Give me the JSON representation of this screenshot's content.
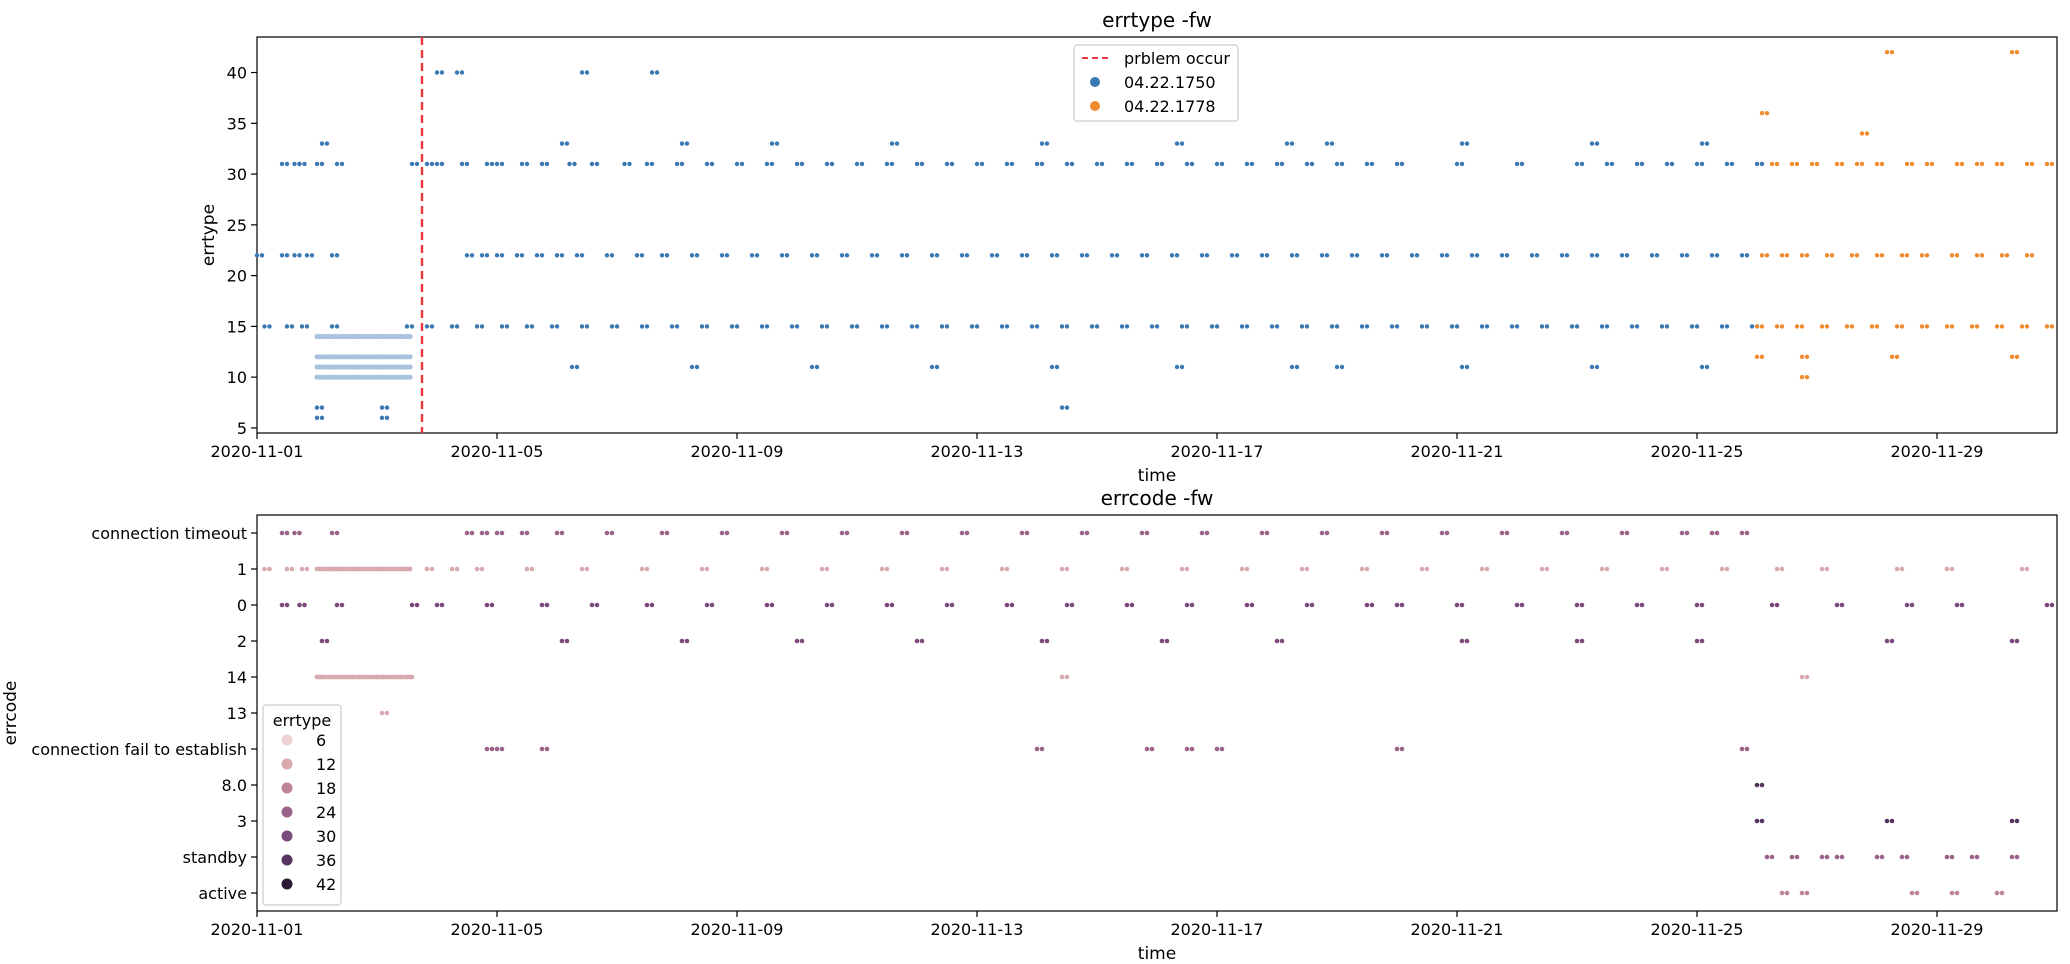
{
  "chart_data": [
    {
      "type": "scatter",
      "title": "errtype -fw",
      "xlabel": "time",
      "ylabel": "errtype",
      "xlim": [
        "2020-11-01",
        "2020-12-01"
      ],
      "ylim": [
        4.5,
        43.5
      ],
      "x_ticks": [
        "2020-11-01",
        "2020-11-05",
        "2020-11-09",
        "2020-11-13",
        "2020-11-17",
        "2020-11-21",
        "2020-11-25",
        "2020-11-29"
      ],
      "y_ticks": [
        5,
        10,
        15,
        20,
        25,
        30,
        35,
        40
      ],
      "legend_position": "upper center",
      "vline": {
        "x": "2020-11-03 18:00",
        "label": "prblem occur",
        "color": "#e8383a",
        "style": "dashed"
      },
      "series": [
        {
          "name": "04.22.1750",
          "color": "#3a78b4",
          "levels": [
            {
              "y": 31,
              "x": [
                "2020-11-01 10:00",
                "2020-11-01 15:00",
                "2020-11-01 17:00",
                "2020-11-02 00:00",
                "2020-11-02 08:00",
                "2020-11-03 14:00",
                "2020-11-03 20:00",
                "2020-11-04 00:00",
                "2020-11-04 10:00",
                "2020-11-04 20:00",
                "2020-11-05 00:00",
                "2020-11-05 10:00",
                "2020-11-05 18:00",
                "2020-11-06 05:00",
                "2020-11-06 14:00",
                "2020-11-07 03:00",
                "2020-11-07 12:00",
                "2020-11-08 00:00",
                "2020-11-08 12:00",
                "2020-11-09 00:00",
                "2020-11-09 12:00",
                "2020-11-10 00:00",
                "2020-11-10 12:00",
                "2020-11-11 00:00",
                "2020-11-11 12:00",
                "2020-11-12 00:00",
                "2020-11-12 12:00",
                "2020-11-13 00:00",
                "2020-11-13 12:00",
                "2020-11-14 00:00",
                "2020-11-14 12:00",
                "2020-11-15 00:00",
                "2020-11-15 12:00",
                "2020-11-16 00:00",
                "2020-11-16 12:00",
                "2020-11-17 00:00",
                "2020-11-17 12:00",
                "2020-11-18 00:00",
                "2020-11-18 12:00",
                "2020-11-19 00:00",
                "2020-11-19 12:00",
                "2020-11-20 00:00",
                "2020-11-21 00:00",
                "2020-11-22 00:00",
                "2020-11-23 00:00",
                "2020-11-23 12:00",
                "2020-11-24 00:00",
                "2020-11-24 12:00",
                "2020-11-25 00:00",
                "2020-11-25 12:00",
                "2020-11-26 00:00"
              ]
            },
            {
              "y": 22,
              "x": [
                "2020-11-01 00:00",
                "2020-11-01 10:00",
                "2020-11-01 15:00",
                "2020-11-01 20:00",
                "2020-11-02 06:00",
                "2020-11-04 12:00",
                "2020-11-04 18:00",
                "2020-11-05 00:00",
                "2020-11-05 08:00",
                "2020-11-05 16:00",
                "2020-11-06 00:00",
                "2020-11-06 08:00",
                "2020-11-06 20:00",
                "2020-11-07 08:00",
                "2020-11-07 18:00",
                "2020-11-08 06:00",
                "2020-11-08 18:00",
                "2020-11-09 06:00",
                "2020-11-09 18:00",
                "2020-11-10 06:00",
                "2020-11-10 18:00",
                "2020-11-11 06:00",
                "2020-11-11 18:00",
                "2020-11-12 06:00",
                "2020-11-12 18:00",
                "2020-11-13 06:00",
                "2020-11-13 18:00",
                "2020-11-14 06:00",
                "2020-11-14 18:00",
                "2020-11-15 06:00",
                "2020-11-15 18:00",
                "2020-11-16 06:00",
                "2020-11-16 18:00",
                "2020-11-17 06:00",
                "2020-11-17 18:00",
                "2020-11-18 06:00",
                "2020-11-18 18:00",
                "2020-11-19 06:00",
                "2020-11-19 18:00",
                "2020-11-20 06:00",
                "2020-11-20 18:00",
                "2020-11-21 06:00",
                "2020-11-21 18:00",
                "2020-11-22 06:00",
                "2020-11-22 18:00",
                "2020-11-23 06:00",
                "2020-11-23 18:00",
                "2020-11-24 06:00",
                "2020-11-24 18:00",
                "2020-11-25 06:00",
                "2020-11-25 18:00"
              ]
            },
            {
              "y": 15,
              "x": [
                "2020-11-01 03:00",
                "2020-11-01 12:00",
                "2020-11-01 18:00",
                "2020-11-02 06:00",
                "2020-11-03 12:00",
                "2020-11-03 20:00",
                "2020-11-04 06:00",
                "2020-11-04 16:00",
                "2020-11-05 02:00",
                "2020-11-05 12:00",
                "2020-11-05 22:00",
                "2020-11-06 10:00",
                "2020-11-06 22:00",
                "2020-11-07 10:00",
                "2020-11-07 22:00",
                "2020-11-08 10:00",
                "2020-11-08 22:00",
                "2020-11-09 10:00",
                "2020-11-09 22:00",
                "2020-11-10 10:00",
                "2020-11-10 22:00",
                "2020-11-11 10:00",
                "2020-11-11 22:00",
                "2020-11-12 10:00",
                "2020-11-12 22:00",
                "2020-11-13 10:00",
                "2020-11-13 22:00",
                "2020-11-14 10:00",
                "2020-11-14 22:00",
                "2020-11-15 10:00",
                "2020-11-15 22:00",
                "2020-11-16 10:00",
                "2020-11-16 22:00",
                "2020-11-17 10:00",
                "2020-11-17 22:00",
                "2020-11-18 10:00",
                "2020-11-18 22:00",
                "2020-11-19 10:00",
                "2020-11-19 22:00",
                "2020-11-20 10:00",
                "2020-11-20 22:00",
                "2020-11-21 10:00",
                "2020-11-21 22:00",
                "2020-11-22 10:00",
                "2020-11-22 22:00",
                "2020-11-23 10:00",
                "2020-11-23 22:00",
                "2020-11-24 10:00",
                "2020-11-24 22:00",
                "2020-11-25 10:00",
                "2020-11-25 22:00"
              ]
            },
            {
              "y": 33,
              "x": [
                "2020-11-02 02:00",
                "2020-11-06 02:00",
                "2020-11-08 02:00",
                "2020-11-09 14:00",
                "2020-11-11 14:00",
                "2020-11-14 02:00",
                "2020-11-16 08:00",
                "2020-11-18 04:00",
                "2020-11-18 20:00",
                "2020-11-21 02:00",
                "2020-11-23 06:00",
                "2020-11-25 02:00"
              ]
            },
            {
              "y": 40,
              "x": [
                "2020-11-04 00:00",
                "2020-11-04 08:00",
                "2020-11-06 10:00",
                "2020-11-07 14:00"
              ]
            },
            {
              "y": 11,
              "x": [
                "2020-11-06 06:00",
                "2020-11-08 06:00",
                "2020-11-10 06:00",
                "2020-11-12 06:00",
                "2020-11-14 06:00",
                "2020-11-16 08:00",
                "2020-11-18 06:00",
                "2020-11-19 00:00",
                "2020-11-21 02:00",
                "2020-11-23 06:00",
                "2020-11-25 02:00"
              ]
            },
            {
              "y": 7,
              "x": [
                "2020-11-02 00:00",
                "2020-11-03 02:00",
                "2020-11-14 10:00"
              ]
            },
            {
              "y": 6,
              "x": [
                "2020-11-02 00:00",
                "2020-11-03 02:00"
              ]
            }
          ]
        },
        {
          "name": "04.22.1778",
          "color": "#f08a2e",
          "levels": [
            {
              "y": 31,
              "x": [
                "2020-11-26 06:00",
                "2020-11-26 14:00",
                "2020-11-26 22:00",
                "2020-11-27 08:00",
                "2020-11-27 16:00",
                "2020-11-28 00:00",
                "2020-11-28 12:00",
                "2020-11-28 20:00",
                "2020-11-29 08:00",
                "2020-11-29 16:00",
                "2020-11-30 00:00",
                "2020-11-30 12:00",
                "2020-11-30 20:00"
              ]
            },
            {
              "y": 22,
              "x": [
                "2020-11-26 02:00",
                "2020-11-26 10:00",
                "2020-11-26 18:00",
                "2020-11-27 04:00",
                "2020-11-27 14:00",
                "2020-11-28 00:00",
                "2020-11-28 10:00",
                "2020-11-28 18:00",
                "2020-11-29 06:00",
                "2020-11-29 16:00",
                "2020-11-30 02:00",
                "2020-11-30 12:00"
              ]
            },
            {
              "y": 15,
              "x": [
                "2020-11-26 00:00",
                "2020-11-26 08:00",
                "2020-11-26 16:00",
                "2020-11-27 02:00",
                "2020-11-27 12:00",
                "2020-11-27 22:00",
                "2020-11-28 08:00",
                "2020-11-28 18:00",
                "2020-11-29 04:00",
                "2020-11-29 14:00",
                "2020-11-30 00:00",
                "2020-11-30 10:00",
                "2020-11-30 20:00"
              ]
            },
            {
              "y": 36,
              "x": [
                "2020-11-26 02:00"
              ]
            },
            {
              "y": 34,
              "x": [
                "2020-11-27 18:00"
              ]
            },
            {
              "y": 42,
              "x": [
                "2020-11-28 04:00",
                "2020-11-30 06:00"
              ]
            },
            {
              "y": 12,
              "x": [
                "2020-11-26 00:00",
                "2020-11-26 18:00",
                "2020-11-28 06:00",
                "2020-11-30 06:00"
              ]
            },
            {
              "y": 10,
              "x": [
                "2020-11-26 18:00"
              ]
            }
          ]
        }
      ]
    },
    {
      "type": "scatter",
      "title": "errcode -fw",
      "xlabel": "time",
      "ylabel": "errcode",
      "xlim": [
        "2020-11-01",
        "2020-12-01"
      ],
      "x_ticks": [
        "2020-11-01",
        "2020-11-05",
        "2020-11-09",
        "2020-11-13",
        "2020-11-17",
        "2020-11-21",
        "2020-11-25",
        "2020-11-29"
      ],
      "categories": [
        "connection timeout",
        "1",
        "0",
        "2",
        "14",
        "13",
        "connection fail to establish",
        "8.0",
        "3",
        "standby",
        "active"
      ],
      "hue": "errtype",
      "legend_title": "errtype",
      "legend_position": "lower left",
      "legend_levels": [
        6,
        12,
        18,
        24,
        30,
        36,
        42
      ],
      "legend_colors": [
        "#ecd2d2",
        "#d8a9ae",
        "#be8299",
        "#9c6389",
        "#7b4a7c",
        "#553560",
        "#2a1a36"
      ],
      "rows": [
        {
          "category": "connection timeout",
          "errtype": 22,
          "x": [
            "2020-11-01 10:00",
            "2020-11-01 15:00",
            "2020-11-02 06:00",
            "2020-11-04 12:00",
            "2020-11-04 18:00",
            "2020-11-05 00:00",
            "2020-11-05 10:00",
            "2020-11-06 00:00",
            "2020-11-06 20:00",
            "2020-11-07 18:00",
            "2020-11-08 18:00",
            "2020-11-09 18:00",
            "2020-11-10 18:00",
            "2020-11-11 18:00",
            "2020-11-12 18:00",
            "2020-11-13 18:00",
            "2020-11-14 18:00",
            "2020-11-15 18:00",
            "2020-11-16 18:00",
            "2020-11-17 18:00",
            "2020-11-18 18:00",
            "2020-11-19 18:00",
            "2020-11-20 18:00",
            "2020-11-21 18:00",
            "2020-11-22 18:00",
            "2020-11-23 18:00",
            "2020-11-24 18:00",
            "2020-11-25 06:00",
            "2020-11-25 18:00"
          ]
        },
        {
          "category": "1",
          "errtype": 15,
          "x": [
            "2020-11-01 03:00",
            "2020-11-01 12:00",
            "2020-11-01 18:00",
            "2020-11-02 06:00",
            "2020-11-03 20:00",
            "2020-11-04 06:00",
            "2020-11-04 16:00",
            "2020-11-05 12:00",
            "2020-11-06 10:00",
            "2020-11-07 10:00",
            "2020-11-08 10:00",
            "2020-11-09 10:00",
            "2020-11-10 10:00",
            "2020-11-11 10:00",
            "2020-11-12 10:00",
            "2020-11-13 10:00",
            "2020-11-14 10:00",
            "2020-11-15 10:00",
            "2020-11-16 10:00",
            "2020-11-17 10:00",
            "2020-11-18 10:00",
            "2020-11-19 10:00",
            "2020-11-20 10:00",
            "2020-11-21 10:00",
            "2020-11-22 10:00",
            "2020-11-23 10:00",
            "2020-11-24 10:00",
            "2020-11-25 10:00",
            "2020-11-26 08:00",
            "2020-11-27 02:00",
            "2020-11-28 08:00",
            "2020-11-29 04:00",
            "2020-11-30 10:00"
          ]
        },
        {
          "category": "0",
          "errtype": 31,
          "x": [
            "2020-11-01 10:00",
            "2020-11-01 17:00",
            "2020-11-02 08:00",
            "2020-11-03 14:00",
            "2020-11-04 00:00",
            "2020-11-04 20:00",
            "2020-11-05 18:00",
            "2020-11-06 14:00",
            "2020-11-07 12:00",
            "2020-11-08 12:00",
            "2020-11-09 12:00",
            "2020-11-10 12:00",
            "2020-11-11 12:00",
            "2020-11-12 12:00",
            "2020-11-13 12:00",
            "2020-11-14 12:00",
            "2020-11-15 12:00",
            "2020-11-16 12:00",
            "2020-11-17 12:00",
            "2020-11-18 12:00",
            "2020-11-19 12:00",
            "2020-11-20 00:00",
            "2020-11-21 00:00",
            "2020-11-22 00:00",
            "2020-11-23 00:00",
            "2020-11-24 00:00",
            "2020-11-25 00:00",
            "2020-11-26 06:00",
            "2020-11-27 08:00",
            "2020-11-28 12:00",
            "2020-11-29 08:00",
            "2020-11-30 20:00"
          ]
        },
        {
          "category": "2",
          "errtype": 33,
          "x": [
            "2020-11-02 02:00",
            "2020-11-06 02:00",
            "2020-11-08 02:00",
            "2020-11-10 00:00",
            "2020-11-12 00:00",
            "2020-11-14 02:00",
            "2020-11-16 02:00",
            "2020-11-18 00:00",
            "2020-11-21 02:00",
            "2020-11-23 00:00",
            "2020-11-25 00:00",
            "2020-11-28 04:00",
            "2020-11-30 06:00"
          ]
        },
        {
          "category": "14",
          "errtype": 14,
          "x": [
            "2020-11-02 00:00",
            "2020-11-02 06:00",
            "2020-11-02 12:00",
            "2020-11-02 18:00",
            "2020-11-03 00:00",
            "2020-11-03 06:00",
            "2020-11-03 12:00",
            "2020-11-14 10:00",
            "2020-11-26 18:00"
          ]
        },
        {
          "category": "13",
          "errtype": 13,
          "x": [
            "2020-11-03 02:00"
          ]
        },
        {
          "category": "connection fail to establish",
          "errtype": 23,
          "x": [
            "2020-11-04 20:00",
            "2020-11-05 00:00",
            "2020-11-05 18:00",
            "2020-11-14 00:00",
            "2020-11-15 20:00",
            "2020-11-16 12:00",
            "2020-11-17 00:00",
            "2020-11-20 00:00",
            "2020-11-25 18:00"
          ]
        },
        {
          "category": "8.0",
          "errtype": 38,
          "x": [
            "2020-11-26 00:00"
          ]
        },
        {
          "category": "3",
          "errtype": 36,
          "x": [
            "2020-11-26 00:00",
            "2020-11-28 04:00",
            "2020-11-30 06:00"
          ]
        },
        {
          "category": "standby",
          "errtype": 22,
          "x": [
            "2020-11-26 04:00",
            "2020-11-26 14:00",
            "2020-11-27 02:00",
            "2020-11-27 08:00",
            "2020-11-28 00:00",
            "2020-11-28 10:00",
            "2020-11-29 04:00",
            "2020-11-29 14:00",
            "2020-11-30 06:00"
          ]
        },
        {
          "category": "active",
          "errtype": 20,
          "x": [
            "2020-11-26 10:00",
            "2020-11-26 18:00",
            "2020-11-28 14:00",
            "2020-11-29 06:00",
            "2020-11-30 00:00"
          ]
        }
      ],
      "dense_runs": [
        {
          "category": "1",
          "errtype": 10,
          "from": "2020-11-02 00:00",
          "to": "2020-11-03 14:00"
        },
        {
          "category": "14",
          "errtype": 14,
          "from": "2020-11-02 00:00",
          "to": "2020-11-03 14:00"
        }
      ]
    }
  ],
  "blue_band": {
    "color": "#a9c2de",
    "levels": [
      14,
      12,
      11,
      10
    ],
    "from": "2020-11-02 00:00",
    "to": "2020-11-03 14:00"
  }
}
